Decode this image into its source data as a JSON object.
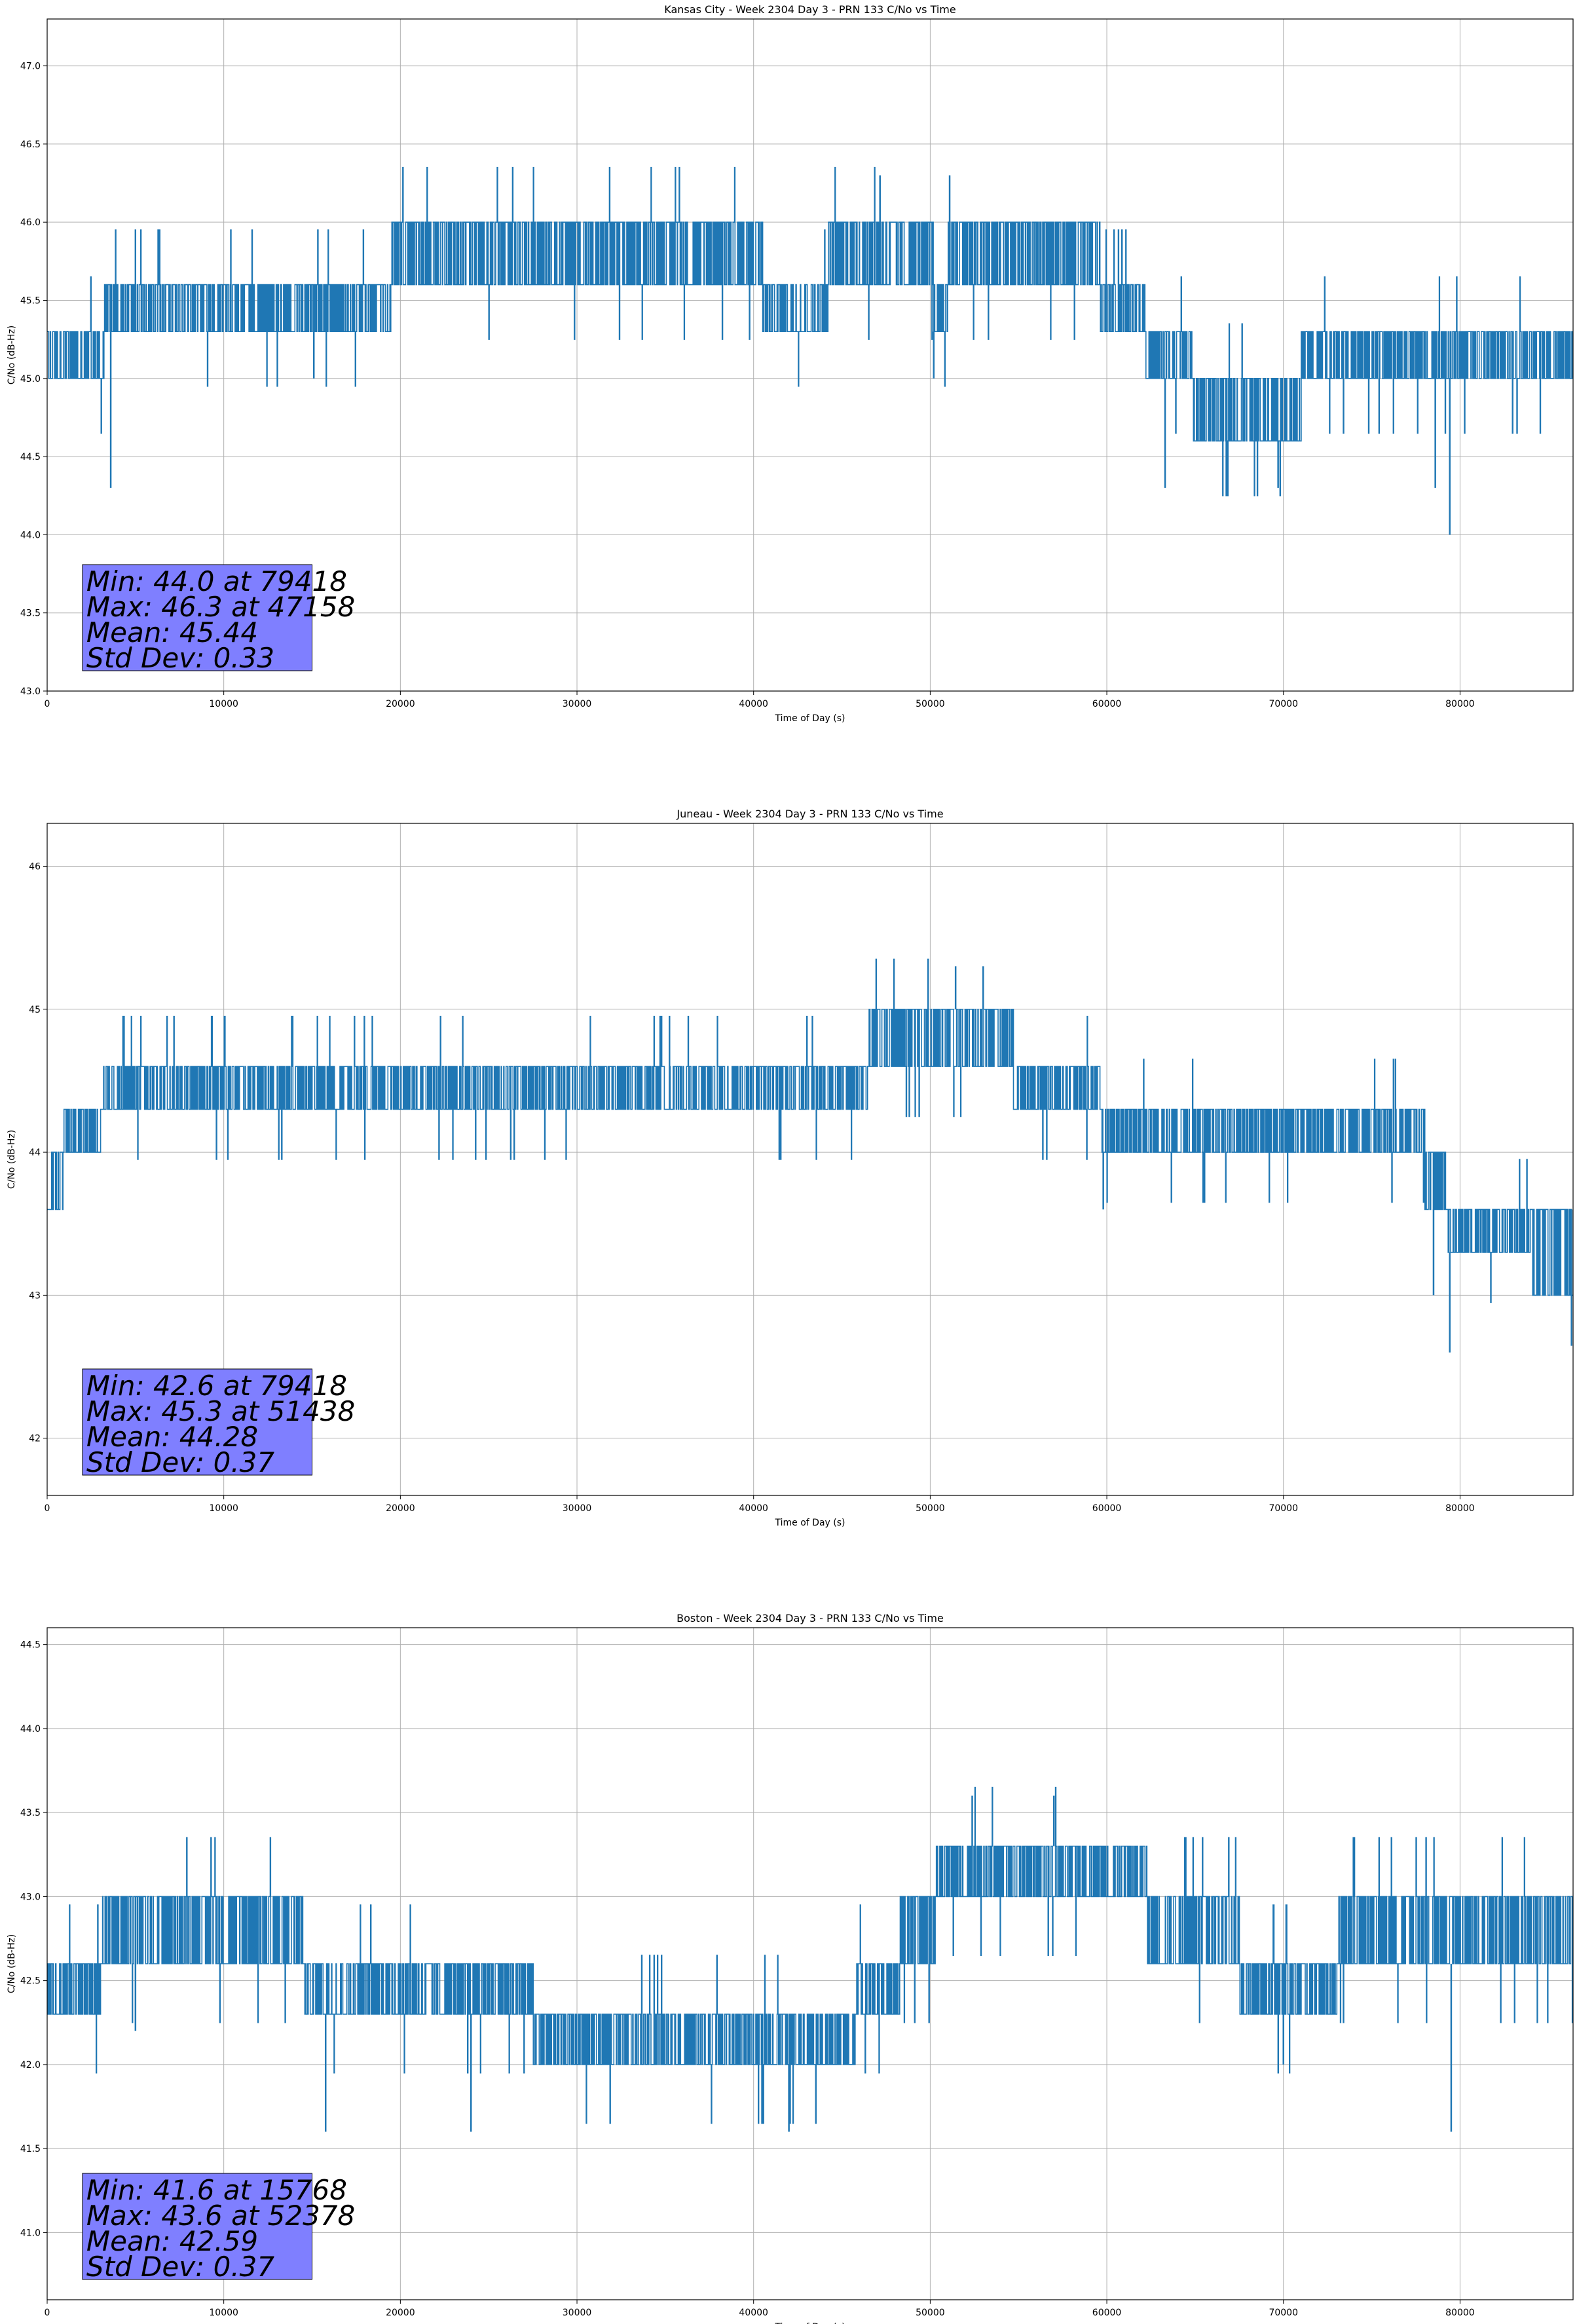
{
  "colors": {
    "series": "#1f77b4",
    "stats_box": "#7f7fff",
    "grid": "#b0b0b0"
  },
  "chart_data": [
    {
      "type": "line",
      "title": "Kansas City - Week 2304 Day 3 - PRN 133 C/No vs Time",
      "xlabel": "Time of Day (s)",
      "ylabel": "C/No (dB-Hz)",
      "xlim": [
        0,
        86400
      ],
      "ylim": [
        43.0,
        47.3
      ],
      "xticks": [
        0,
        10000,
        20000,
        30000,
        40000,
        50000,
        60000,
        70000,
        80000
      ],
      "yticks": [
        43.0,
        43.5,
        44.0,
        44.5,
        45.0,
        45.5,
        46.0,
        46.5,
        47.0
      ],
      "ytick_decimals": 1,
      "grid": true,
      "series_name": "C/No",
      "levels": [
        [
          0,
          45.0,
          45.3
        ],
        [
          3200,
          45.3,
          45.6
        ],
        [
          7500,
          45.3,
          45.6
        ],
        [
          19500,
          45.6,
          46.0
        ],
        [
          40500,
          45.3,
          45.6
        ],
        [
          44200,
          45.6,
          46.0
        ],
        [
          50200,
          45.3,
          45.6
        ],
        [
          51000,
          45.6,
          46.0
        ],
        [
          59600,
          45.3,
          45.6
        ],
        [
          62200,
          45.0,
          45.3
        ],
        [
          64800,
          44.6,
          45.0
        ],
        [
          71000,
          45.0,
          45.3
        ],
        [
          86400,
          45.0,
          45.3
        ]
      ],
      "spikes": [
        [
          3600,
          44.3
        ],
        [
          47158,
          46.3
        ],
        [
          51100,
          46.3
        ],
        [
          79418,
          44.0
        ],
        [
          69700,
          44.3
        ],
        [
          63300,
          44.3
        ],
        [
          15100,
          45.0
        ],
        [
          50200,
          45.0
        ],
        [
          78600,
          44.3
        ]
      ],
      "stats": [
        "Min: 44.0 at 79418",
        "Max: 46.3 at 47158",
        "Mean: 45.44",
        "Std Dev: 0.33"
      ]
    },
    {
      "type": "line",
      "title": "Juneau - Week 2304 Day 3 - PRN 133 C/No vs Time",
      "xlabel": "Time of Day (s)",
      "ylabel": "C/No (dB-Hz)",
      "xlim": [
        0,
        86400
      ],
      "ylim": [
        41.6,
        46.3
      ],
      "xticks": [
        0,
        10000,
        20000,
        30000,
        40000,
        50000,
        60000,
        70000,
        80000
      ],
      "yticks": [
        42,
        43,
        44,
        45,
        46
      ],
      "ytick_decimals": 0,
      "grid": true,
      "series_name": "C/No",
      "levels": [
        [
          0,
          43.6,
          44.0
        ],
        [
          900,
          44.0,
          44.3
        ],
        [
          3000,
          44.3,
          44.6
        ],
        [
          46500,
          44.6,
          45.0
        ],
        [
          54700,
          44.3,
          44.6
        ],
        [
          59600,
          44.0,
          44.3
        ],
        [
          78000,
          43.6,
          44.0
        ],
        [
          79300,
          43.3,
          43.6
        ],
        [
          84000,
          43.0,
          43.6
        ],
        [
          86400,
          43.0,
          43.3
        ]
      ],
      "spikes": [
        [
          79418,
          42.6
        ],
        [
          51438,
          45.3
        ],
        [
          53000,
          45.3
        ],
        [
          78500,
          43.0
        ],
        [
          59800,
          43.6
        ]
      ],
      "stats": [
        "Min: 42.6 at 79418",
        "Max: 45.3 at 51438",
        "Mean: 44.28",
        "Std Dev: 0.37"
      ]
    },
    {
      "type": "line",
      "title": "Boston - Week 2304 Day 3 - PRN 133 C/No vs Time",
      "xlabel": "Time of Day (s)",
      "ylabel": "C/No (dB-Hz)",
      "xlim": [
        0,
        86400
      ],
      "ylim": [
        40.6,
        44.6
      ],
      "xticks": [
        0,
        10000,
        20000,
        30000,
        40000,
        50000,
        60000,
        70000,
        80000
      ],
      "yticks": [
        41.0,
        41.5,
        42.0,
        42.5,
        43.0,
        43.5,
        44.0,
        44.5
      ],
      "ytick_decimals": 1,
      "grid": true,
      "series_name": "C/No",
      "levels": [
        [
          0,
          42.3,
          42.6
        ],
        [
          3000,
          42.6,
          43.0
        ],
        [
          14500,
          42.3,
          42.6
        ],
        [
          27500,
          42.0,
          42.3
        ],
        [
          45800,
          42.3,
          42.6
        ],
        [
          48300,
          42.6,
          43.0
        ],
        [
          50300,
          43.0,
          43.3
        ],
        [
          62300,
          42.6,
          43.0
        ],
        [
          67500,
          42.3,
          42.6
        ],
        [
          73000,
          42.6,
          43.0
        ],
        [
          86400,
          42.6,
          43.0
        ]
      ],
      "spikes": [
        [
          15768,
          41.6
        ],
        [
          52378,
          43.6
        ],
        [
          57000,
          43.6
        ],
        [
          79500,
          41.6
        ],
        [
          5000,
          42.2
        ],
        [
          24000,
          41.6
        ],
        [
          42000,
          41.6
        ],
        [
          70000,
          42.0
        ]
      ],
      "stats": [
        "Min: 41.6 at 15768",
        "Max: 43.6 at 52378",
        "Mean: 42.59",
        "Std Dev: 0.37"
      ]
    }
  ]
}
